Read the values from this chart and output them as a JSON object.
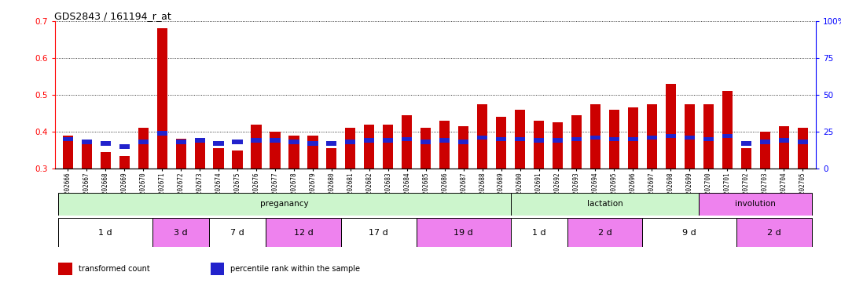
{
  "title": "GDS2843 / 161194_r_at",
  "samples": [
    "GSM202666",
    "GSM202667",
    "GSM202668",
    "GSM202669",
    "GSM202670",
    "GSM202671",
    "GSM202672",
    "GSM202673",
    "GSM202674",
    "GSM202675",
    "GSM202676",
    "GSM202677",
    "GSM202678",
    "GSM202679",
    "GSM202680",
    "GSM202681",
    "GSM202682",
    "GSM202683",
    "GSM202684",
    "GSM202685",
    "GSM202686",
    "GSM202687",
    "GSM202688",
    "GSM202689",
    "GSM202690",
    "GSM202691",
    "GSM202692",
    "GSM202693",
    "GSM202694",
    "GSM202695",
    "GSM202696",
    "GSM202697",
    "GSM202698",
    "GSM202699",
    "GSM202700",
    "GSM202701",
    "GSM202702",
    "GSM202703",
    "GSM202704",
    "GSM202705"
  ],
  "red_values": [
    0.39,
    0.375,
    0.345,
    0.335,
    0.41,
    0.68,
    0.38,
    0.38,
    0.355,
    0.35,
    0.42,
    0.4,
    0.39,
    0.39,
    0.355,
    0.41,
    0.42,
    0.42,
    0.445,
    0.41,
    0.43,
    0.415,
    0.475,
    0.44,
    0.46,
    0.43,
    0.425,
    0.445,
    0.475,
    0.46,
    0.465,
    0.475,
    0.53,
    0.475,
    0.475,
    0.51,
    0.355,
    0.4,
    0.415,
    0.41
  ],
  "blue_values": [
    20,
    18,
    17,
    15,
    18,
    24,
    18,
    19,
    17,
    18,
    19,
    19,
    18,
    17,
    17,
    18,
    19,
    19,
    20,
    18,
    19,
    18,
    21,
    20,
    20,
    19,
    19,
    20,
    21,
    20,
    20,
    21,
    22,
    21,
    20,
    22,
    17,
    18,
    19,
    18
  ],
  "ylim_left": [
    0.3,
    0.7
  ],
  "ylim_right": [
    0,
    100
  ],
  "yticks_left": [
    0.3,
    0.4,
    0.5,
    0.6,
    0.7
  ],
  "yticks_right": [
    0,
    25,
    50,
    75,
    100
  ],
  "bar_color": "#cc0000",
  "blue_color": "#2222cc",
  "bar_width": 0.55,
  "dev_stages": [
    {
      "label": "preganancy",
      "start": 0,
      "end": 24,
      "color": "#ccf5cc"
    },
    {
      "label": "lactation",
      "start": 24,
      "end": 34,
      "color": "#ccf5cc"
    },
    {
      "label": "involution",
      "start": 34,
      "end": 40,
      "color": "#ee82ee"
    }
  ],
  "time_blocks": [
    {
      "label": "1 d",
      "start": 0,
      "end": 5,
      "color": "#ffffff"
    },
    {
      "label": "3 d",
      "start": 5,
      "end": 8,
      "color": "#ee82ee"
    },
    {
      "label": "7 d",
      "start": 8,
      "end": 11,
      "color": "#ffffff"
    },
    {
      "label": "12 d",
      "start": 11,
      "end": 15,
      "color": "#ee82ee"
    },
    {
      "label": "17 d",
      "start": 15,
      "end": 19,
      "color": "#ffffff"
    },
    {
      "label": "19 d",
      "start": 19,
      "end": 24,
      "color": "#ee82ee"
    },
    {
      "label": "1 d",
      "start": 24,
      "end": 27,
      "color": "#ffffff"
    },
    {
      "label": "2 d",
      "start": 27,
      "end": 31,
      "color": "#ee82ee"
    },
    {
      "label": "9 d",
      "start": 31,
      "end": 36,
      "color": "#ffffff"
    },
    {
      "label": "2 d",
      "start": 36,
      "end": 40,
      "color": "#ee82ee"
    }
  ],
  "legend_items": [
    {
      "label": "transformed count",
      "color": "#cc0000"
    },
    {
      "label": "percentile rank within the sample",
      "color": "#2222cc"
    }
  ]
}
